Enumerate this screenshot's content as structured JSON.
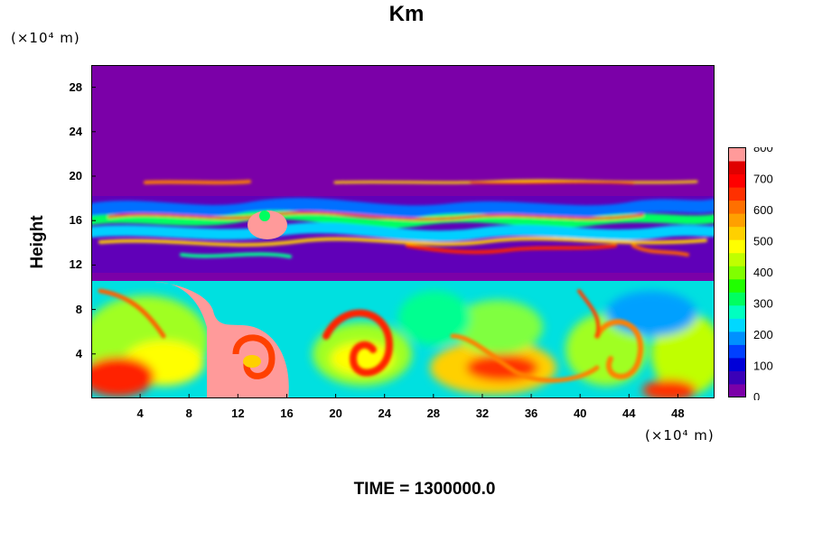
{
  "chart_data": {
    "type": "heatmap",
    "title": "Km",
    "subtitle": "TIME = 1300000.0",
    "xlabel": "",
    "ylabel": "Height",
    "x_unit": "(×10⁴ m)",
    "y_unit": "(×10⁴ m)",
    "xlim": [
      0,
      51
    ],
    "ylim": [
      0,
      30
    ],
    "x_ticks": [
      "4",
      "8",
      "12",
      "16",
      "20",
      "24",
      "28",
      "32",
      "36",
      "40",
      "44",
      "48"
    ],
    "y_ticks": [
      "4",
      "8",
      "12",
      "16",
      "20",
      "24",
      "28"
    ],
    "colorbar": {
      "range": [
        0,
        800
      ],
      "ticks": [
        "800",
        "700",
        "600",
        "500",
        "400",
        "300",
        "200",
        "100",
        "0"
      ],
      "colors": [
        "#7b00a8",
        "#3a00b8",
        "#0000d8",
        "#0040ff",
        "#0090ff",
        "#00d8ff",
        "#00ffc0",
        "#00ff60",
        "#20ff00",
        "#80ff00",
        "#c0ff00",
        "#ffff00",
        "#ffd000",
        "#ffa000",
        "#ff7000",
        "#ff3000",
        "#ff0000",
        "#e00000",
        "#ff9a9a"
      ]
    },
    "regions": [
      {
        "description": "upper layer, value ~0",
        "y_range": [
          20.5,
          30
        ],
        "value": 0
      },
      {
        "description": "turbulent band",
        "y_range": [
          11,
          20
        ],
        "value_range": [
          0,
          800
        ]
      },
      {
        "description": "quiet gap",
        "y_range": [
          10.5,
          11
        ],
        "value": 0
      },
      {
        "description": "lower convective layer",
        "y_range": [
          0,
          10.5
        ],
        "value_range": [
          150,
          800
        ]
      }
    ]
  }
}
